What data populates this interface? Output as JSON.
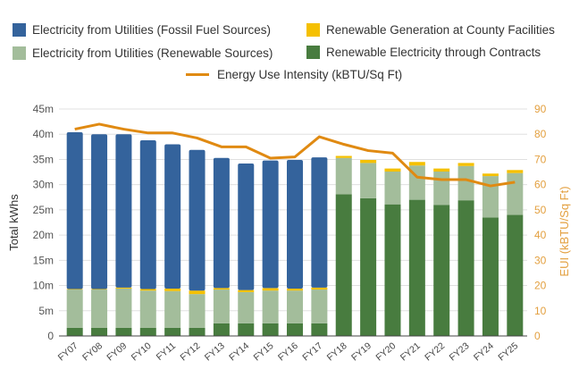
{
  "chart_data": {
    "type": "bar",
    "stacked": true,
    "title": "",
    "xlabel": "",
    "ylabel": "Total kWhs",
    "y2label": "EUI (kBTU/Sq Ft)",
    "ylim": [
      0,
      45
    ],
    "y2lim": [
      0,
      90
    ],
    "yticks": [
      "0",
      "5m",
      "10m",
      "15m",
      "20m",
      "25m",
      "30m",
      "35m",
      "40m",
      "45m"
    ],
    "y2ticks": [
      "0",
      "10",
      "20",
      "30",
      "40",
      "50",
      "60",
      "70",
      "80",
      "90"
    ],
    "grid": true,
    "legend_position": "top",
    "categories": [
      "FY07",
      "FY08",
      "FY09",
      "FY10",
      "FY11",
      "FY12",
      "FY13",
      "FY14",
      "FY15",
      "FY16",
      "FY17",
      "FY18",
      "FY19",
      "FY20",
      "FY21",
      "FY22",
      "FY23",
      "FY24",
      "FY25"
    ],
    "series": [
      {
        "name": "Renewable Electricity through Contracts",
        "color": "#487c3f",
        "unit": "million kWh",
        "values": [
          1.6,
          1.6,
          1.6,
          1.6,
          1.6,
          1.6,
          2.5,
          2.5,
          2.5,
          2.5,
          2.5,
          28.1,
          27.3,
          26.1,
          27.0,
          26.0,
          26.9,
          23.5,
          24.0
        ]
      },
      {
        "name": "Electricity from Utilities (Renewable Sources)",
        "color": "#a3bd9b",
        "unit": "million kWh",
        "values": [
          7.6,
          7.6,
          7.8,
          7.4,
          7.3,
          6.7,
          6.7,
          6.2,
          6.5,
          6.5,
          6.7,
          7.2,
          7.0,
          6.5,
          6.8,
          6.6,
          6.8,
          8.2,
          8.3
        ]
      },
      {
        "name": "Renewable Generation at County Facilities",
        "color": "#f5c000",
        "unit": "million kWh",
        "values": [
          0.1,
          0.1,
          0.2,
          0.3,
          0.5,
          0.7,
          0.3,
          0.4,
          0.5,
          0.4,
          0.4,
          0.4,
          0.6,
          0.6,
          0.7,
          0.6,
          0.6,
          0.5,
          0.6
        ]
      },
      {
        "name": "Electricity from Utilities (Fossil Fuel Sources)",
        "color": "#34639c",
        "unit": "million kWh",
        "values": [
          31.1,
          30.7,
          30.4,
          29.5,
          28.6,
          27.9,
          25.8,
          25.1,
          25.3,
          25.5,
          25.8,
          0,
          0,
          0,
          0,
          0,
          0,
          0,
          0
        ]
      }
    ],
    "line_series": {
      "name": "Energy Use Intensity (kBTU/Sq Ft)",
      "color": "#e08a12",
      "axis": "right",
      "values": [
        82,
        84,
        82,
        80.5,
        80.5,
        78.5,
        75,
        75,
        70.5,
        71,
        79,
        76,
        73.5,
        72.5,
        63,
        62,
        62,
        59.5,
        61
      ]
    }
  }
}
